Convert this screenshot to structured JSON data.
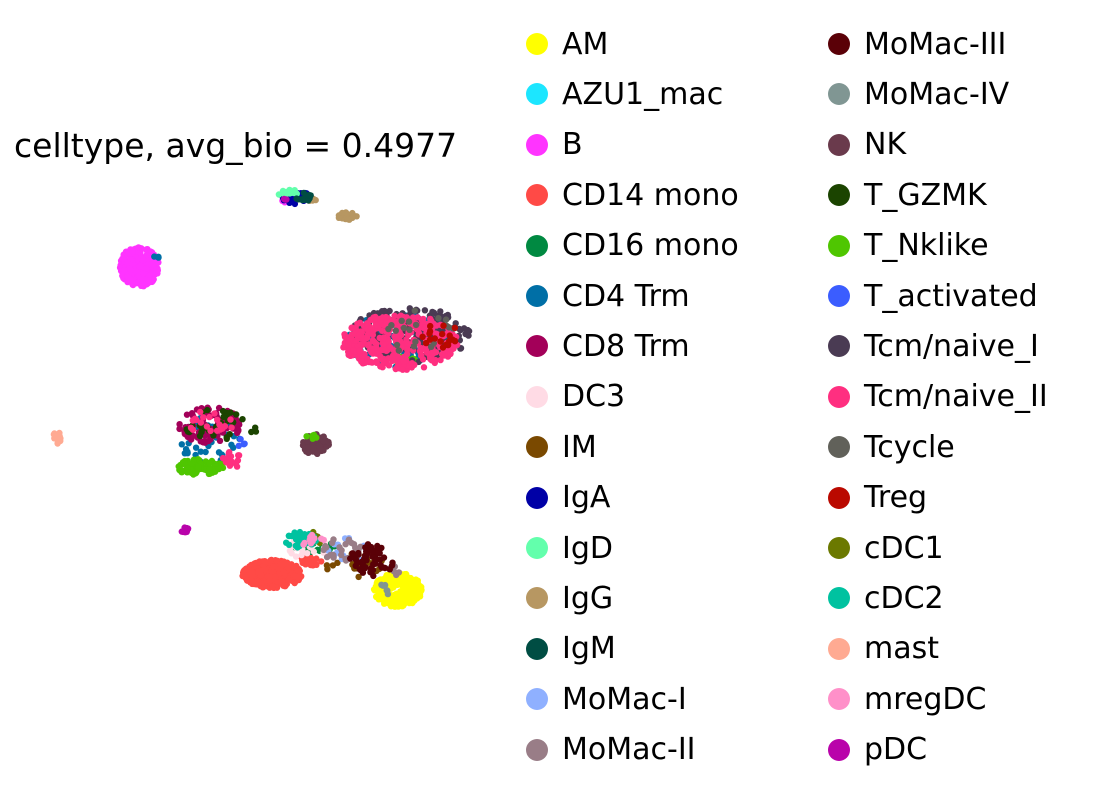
{
  "chart_data": {
    "type": "scatter",
    "title": "celltype, avg_bio = 0.4977",
    "xlabel": "",
    "ylabel": "",
    "axes_visible": false,
    "grid": false,
    "legend_placement": "right, two columns",
    "series": [
      {
        "name": "AM",
        "color": "#ffff00",
        "clusters": [
          {
            "cx": 398,
            "cy": 590,
            "rx": 24,
            "ry": 17,
            "n": 260
          }
        ]
      },
      {
        "name": "AZU1_mac",
        "color": "#1ce6ff",
        "clusters": [
          {
            "cx": 292,
            "cy": 197,
            "rx": 6,
            "ry": 5,
            "n": 4
          }
        ]
      },
      {
        "name": "B",
        "color": "#ff34ff",
        "clusters": [
          {
            "cx": 139,
            "cy": 267,
            "rx": 20,
            "ry": 20,
            "n": 300
          },
          {
            "cx": 286,
            "cy": 200,
            "rx": 5,
            "ry": 4,
            "n": 4
          }
        ]
      },
      {
        "name": "CD14 mono",
        "color": "#ff4a46",
        "clusters": [
          {
            "cx": 272,
            "cy": 574,
            "rx": 30,
            "ry": 14,
            "n": 350
          },
          {
            "cx": 310,
            "cy": 560,
            "rx": 12,
            "ry": 6,
            "n": 25
          }
        ]
      },
      {
        "name": "CD16 mono",
        "color": "#008941",
        "clusters": [
          {
            "cx": 312,
            "cy": 545,
            "rx": 25,
            "ry": 10,
            "n": 25
          }
        ]
      },
      {
        "name": "CD4 Trm",
        "color": "#006fa6",
        "clusters": [
          {
            "cx": 400,
            "cy": 340,
            "rx": 52,
            "ry": 28,
            "n": 120
          },
          {
            "cx": 210,
            "cy": 440,
            "rx": 30,
            "ry": 25,
            "n": 40
          },
          {
            "cx": 158,
            "cy": 258,
            "rx": 4,
            "ry": 4,
            "n": 3
          }
        ]
      },
      {
        "name": "CD8 Trm",
        "color": "#a30059",
        "clusters": [
          {
            "cx": 210,
            "cy": 425,
            "rx": 32,
            "ry": 18,
            "n": 90
          },
          {
            "cx": 315,
            "cy": 444,
            "rx": 12,
            "ry": 10,
            "n": 10
          }
        ]
      },
      {
        "name": "DC3",
        "color": "#ffdbe5",
        "clusters": [
          {
            "cx": 305,
            "cy": 548,
            "rx": 22,
            "ry": 12,
            "n": 30
          }
        ]
      },
      {
        "name": "IM",
        "color": "#7a4900",
        "clusters": [
          {
            "cx": 355,
            "cy": 565,
            "rx": 30,
            "ry": 12,
            "n": 25
          }
        ]
      },
      {
        "name": "IgA",
        "color": "#0000a6",
        "clusters": [
          {
            "cx": 298,
            "cy": 198,
            "rx": 16,
            "ry": 6,
            "n": 30
          }
        ]
      },
      {
        "name": "IgD",
        "color": "#63ffac",
        "clusters": [
          {
            "cx": 288,
            "cy": 193,
            "rx": 10,
            "ry": 4,
            "n": 15
          }
        ]
      },
      {
        "name": "IgG",
        "color": "#b79762",
        "clusters": [
          {
            "cx": 347,
            "cy": 216,
            "rx": 10,
            "ry": 4,
            "n": 25
          },
          {
            "cx": 312,
            "cy": 199,
            "rx": 4,
            "ry": 3,
            "n": 4
          }
        ]
      },
      {
        "name": "IgM",
        "color": "#004d43",
        "clusters": [
          {
            "cx": 304,
            "cy": 197,
            "rx": 12,
            "ry": 5,
            "n": 15
          }
        ]
      },
      {
        "name": "MoMac-I",
        "color": "#8fb0ff",
        "clusters": [
          {
            "cx": 348,
            "cy": 550,
            "rx": 20,
            "ry": 12,
            "n": 20
          }
        ]
      },
      {
        "name": "MoMac-II",
        "color": "#997d87",
        "clusters": [
          {
            "cx": 342,
            "cy": 550,
            "rx": 20,
            "ry": 12,
            "n": 30
          },
          {
            "cx": 395,
            "cy": 572,
            "rx": 8,
            "ry": 6,
            "n": 6
          }
        ]
      },
      {
        "name": "MoMac-III",
        "color": "#5a0007",
        "clusters": [
          {
            "cx": 372,
            "cy": 560,
            "rx": 22,
            "ry": 16,
            "n": 60
          }
        ]
      },
      {
        "name": "MoMac-IV",
        "color": "#809693",
        "clusters": [
          {
            "cx": 385,
            "cy": 590,
            "rx": 8,
            "ry": 6,
            "n": 6
          }
        ]
      },
      {
        "name": "NK",
        "color": "#6a3a4c",
        "clusters": [
          {
            "cx": 315,
            "cy": 444,
            "rx": 14,
            "ry": 10,
            "n": 60
          }
        ]
      },
      {
        "name": "T_GZMK",
        "color": "#1b4400",
        "clusters": [
          {
            "cx": 215,
            "cy": 425,
            "rx": 30,
            "ry": 16,
            "n": 30
          },
          {
            "cx": 255,
            "cy": 430,
            "rx": 5,
            "ry": 4,
            "n": 3
          }
        ]
      },
      {
        "name": "T_Nklike",
        "color": "#4fc601",
        "clusters": [
          {
            "cx": 200,
            "cy": 467,
            "rx": 24,
            "ry": 8,
            "n": 80
          },
          {
            "cx": 405,
            "cy": 360,
            "rx": 12,
            "ry": 5,
            "n": 15
          },
          {
            "cx": 312,
            "cy": 436,
            "rx": 6,
            "ry": 3,
            "n": 5
          }
        ]
      },
      {
        "name": "T_activated",
        "color": "#3b5dff",
        "clusters": [
          {
            "cx": 408,
            "cy": 335,
            "rx": 45,
            "ry": 25,
            "n": 20
          },
          {
            "cx": 240,
            "cy": 440,
            "rx": 6,
            "ry": 6,
            "n": 4
          }
        ]
      },
      {
        "name": "Tcm/naive_I",
        "color": "#4a3b53",
        "clusters": [
          {
            "cx": 410,
            "cy": 335,
            "rx": 60,
            "ry": 28,
            "n": 220
          }
        ]
      },
      {
        "name": "Tcm/naive_II",
        "color": "#ff2f80",
        "clusters": [
          {
            "cx": 400,
            "cy": 342,
            "rx": 58,
            "ry": 28,
            "n": 340
          },
          {
            "cx": 212,
            "cy": 422,
            "rx": 25,
            "ry": 12,
            "n": 20
          },
          {
            "cx": 232,
            "cy": 460,
            "rx": 12,
            "ry": 8,
            "n": 15
          }
        ]
      },
      {
        "name": "Tcycle",
        "color": "#61615a",
        "clusters": [
          {
            "cx": 410,
            "cy": 330,
            "rx": 45,
            "ry": 22,
            "n": 20
          }
        ]
      },
      {
        "name": "Treg",
        "color": "#ba0900",
        "clusters": [
          {
            "cx": 440,
            "cy": 335,
            "rx": 18,
            "ry": 14,
            "n": 20
          }
        ]
      },
      {
        "name": "cDC1",
        "color": "#6b7900",
        "clusters": [
          {
            "cx": 315,
            "cy": 538,
            "rx": 12,
            "ry": 6,
            "n": 8
          }
        ]
      },
      {
        "name": "cDC2",
        "color": "#00c2a0",
        "clusters": [
          {
            "cx": 300,
            "cy": 540,
            "rx": 16,
            "ry": 8,
            "n": 35
          }
        ]
      },
      {
        "name": "mast",
        "color": "#ffaa92",
        "clusters": [
          {
            "cx": 57,
            "cy": 437,
            "rx": 4,
            "ry": 7,
            "n": 18
          }
        ]
      },
      {
        "name": "mregDC",
        "color": "#ff90c9",
        "clusters": [
          {
            "cx": 312,
            "cy": 542,
            "rx": 15,
            "ry": 8,
            "n": 12
          }
        ]
      },
      {
        "name": "pDC",
        "color": "#b903aa",
        "clusters": [
          {
            "cx": 185,
            "cy": 530,
            "rx": 4,
            "ry": 3,
            "n": 10
          },
          {
            "cx": 283,
            "cy": 201,
            "rx": 4,
            "ry": 3,
            "n": 3
          }
        ]
      }
    ]
  }
}
